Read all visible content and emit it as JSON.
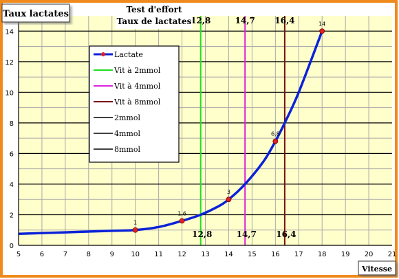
{
  "chart_data": {
    "type": "line",
    "title_line1": "Test d'effort",
    "title_line2": "Taux de lactates",
    "ylabel": "Taux lactates",
    "xlabel": "Vitesse",
    "xlim": [
      5,
      21
    ],
    "ylim": [
      0,
      15
    ],
    "xticks": [
      "5",
      "6",
      "7",
      "8",
      "9",
      "10",
      "11",
      "12",
      "13",
      "14",
      "15",
      "16",
      "17",
      "18",
      "19",
      "20",
      "21"
    ],
    "yticks": [
      "0",
      "2",
      "4",
      "6",
      "8",
      "10",
      "12",
      "14"
    ],
    "grid": true,
    "legend_position": "upper-left",
    "lactate_curve": {
      "name": "Lactate",
      "color": "#0b22d8",
      "x": [
        5,
        7,
        9,
        10,
        11,
        12,
        12.8,
        13.5,
        14,
        14.7,
        15.5,
        16,
        16.4,
        17,
        18
      ],
      "y": [
        0.75,
        0.85,
        0.95,
        1.0,
        1.2,
        1.6,
        2.0,
        2.5,
        3.0,
        4.0,
        5.5,
        6.8,
        8.0,
        10.0,
        14.0
      ]
    },
    "measured_points": [
      {
        "x": 10,
        "y": 1,
        "label": "1"
      },
      {
        "x": 12,
        "y": 1.6,
        "label": "1,6"
      },
      {
        "x": 14,
        "y": 3,
        "label": "3"
      },
      {
        "x": 16,
        "y": 6.8,
        "label": "6,8"
      },
      {
        "x": 18,
        "y": 14,
        "label": "14"
      }
    ],
    "threshold_speeds": [
      {
        "name": "Vit à 2mmol",
        "x": 12.8,
        "label": "12,8",
        "color": "#22dd22",
        "show_bottom_label": true
      },
      {
        "name": "Vit à 4mmol",
        "x": 14.7,
        "label": "14,7",
        "color": "#dd22dd",
        "show_bottom_label": true
      },
      {
        "name": "Vit à 8mmol",
        "x": 16.4,
        "label": "16,4",
        "color": "#7a1010",
        "show_bottom_label": true
      }
    ],
    "threshold_levels": [
      {
        "name": "2mmol",
        "y": 2
      },
      {
        "name": "4mmol",
        "y": 4
      },
      {
        "name": "8mmol",
        "y": 8
      }
    ],
    "colors": {
      "plot_background": "#ffffcc",
      "frame": "#f08a1c",
      "minor_grid": "#a8a8a8",
      "level_line": "#000000",
      "marker": "#dd2222"
    }
  }
}
